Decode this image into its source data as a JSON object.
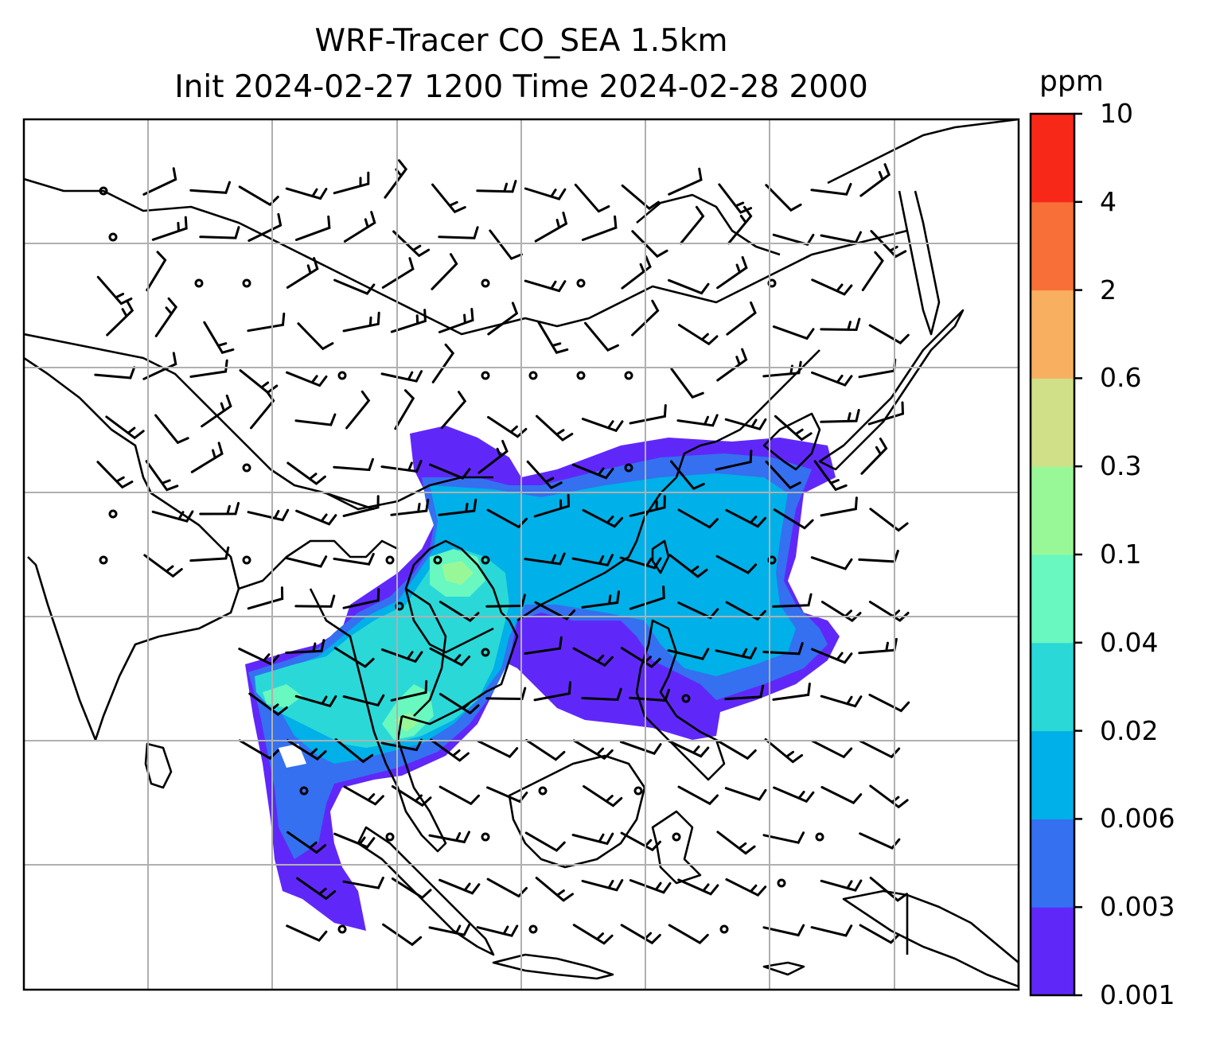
{
  "title_line1": "WRF-Tracer CO_SEA 1.5km",
  "title_line2": "Init 2024-02-27 1200 Time 2024-02-28 2000",
  "colorbar": {
    "unit": "ppm",
    "ticks": [
      "0.001",
      "0.003",
      "0.006",
      "0.02",
      "0.04",
      "0.1",
      "0.3",
      "0.6",
      "2",
      "4",
      "10"
    ],
    "colors": [
      "#6028f8",
      "#3470f0",
      "#00b0e8",
      "#2ad8d8",
      "#68f8c0",
      "#98f898",
      "#d0e088",
      "#f8b060",
      "#f87038",
      "#f82818"
    ]
  }
}
